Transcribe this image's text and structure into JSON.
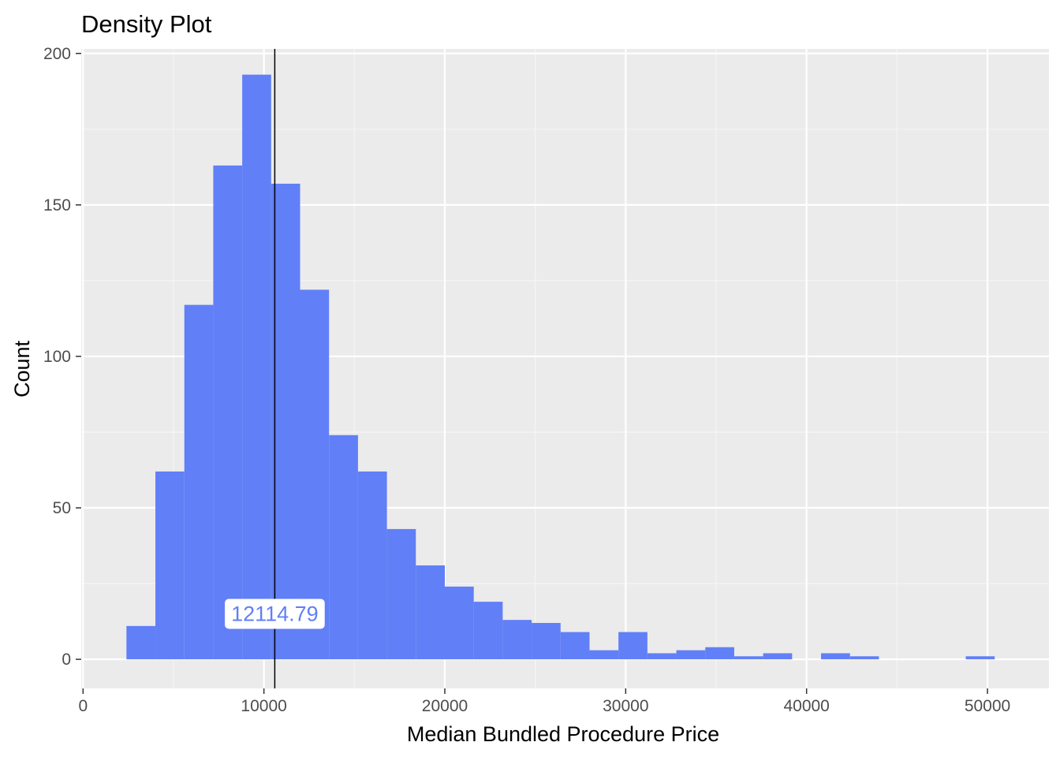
{
  "chart_data": {
    "type": "bar",
    "title": "Density Plot",
    "xlabel": "Median Bundled Procedure Price",
    "ylabel": "Count",
    "xlim": [
      -100,
      53400
    ],
    "ylim": [
      -9.6,
      201.5
    ],
    "x_ticks": [
      0,
      10000,
      20000,
      30000,
      40000,
      50000
    ],
    "x_tick_labels": [
      "0",
      "10000",
      "20000",
      "30000",
      "40000",
      "50000"
    ],
    "y_ticks": [
      0,
      50,
      100,
      150,
      200
    ],
    "y_tick_labels": [
      "0",
      "50",
      "100",
      "150",
      "200"
    ],
    "grid": true,
    "bin_width": 1600,
    "bins": [
      {
        "x0": 2400,
        "x1": 4000,
        "count": 11
      },
      {
        "x0": 4000,
        "x1": 5600,
        "count": 62
      },
      {
        "x0": 5600,
        "x1": 7200,
        "count": 117
      },
      {
        "x0": 7200,
        "x1": 8800,
        "count": 163
      },
      {
        "x0": 8800,
        "x1": 10400,
        "count": 193
      },
      {
        "x0": 10400,
        "x1": 12000,
        "count": 157
      },
      {
        "x0": 12000,
        "x1": 13600,
        "count": 122
      },
      {
        "x0": 13600,
        "x1": 15200,
        "count": 74
      },
      {
        "x0": 15200,
        "x1": 16800,
        "count": 62
      },
      {
        "x0": 16800,
        "x1": 18400,
        "count": 43
      },
      {
        "x0": 18400,
        "x1": 20000,
        "count": 31
      },
      {
        "x0": 20000,
        "x1": 21600,
        "count": 24
      },
      {
        "x0": 21600,
        "x1": 23200,
        "count": 19
      },
      {
        "x0": 23200,
        "x1": 24800,
        "count": 13
      },
      {
        "x0": 24800,
        "x1": 26400,
        "count": 12
      },
      {
        "x0": 26400,
        "x1": 28000,
        "count": 9
      },
      {
        "x0": 28000,
        "x1": 29600,
        "count": 3
      },
      {
        "x0": 29600,
        "x1": 31200,
        "count": 9
      },
      {
        "x0": 31200,
        "x1": 32800,
        "count": 2
      },
      {
        "x0": 32800,
        "x1": 34400,
        "count": 3
      },
      {
        "x0": 34400,
        "x1": 36000,
        "count": 4
      },
      {
        "x0": 36000,
        "x1": 37600,
        "count": 1
      },
      {
        "x0": 37600,
        "x1": 39200,
        "count": 2
      },
      {
        "x0": 39200,
        "x1": 40800,
        "count": 0
      },
      {
        "x0": 40800,
        "x1": 42400,
        "count": 2
      },
      {
        "x0": 42400,
        "x1": 44000,
        "count": 1
      },
      {
        "x0": 44000,
        "x1": 45600,
        "count": 0
      },
      {
        "x0": 45600,
        "x1": 47200,
        "count": 0
      },
      {
        "x0": 47200,
        "x1": 48800,
        "count": 0
      },
      {
        "x0": 48800,
        "x1": 50400,
        "count": 1
      }
    ],
    "vline": {
      "x": 10600,
      "color": "#000000"
    },
    "annotation": {
      "text": "12114.79",
      "x": 10600,
      "y": 15
    },
    "colors": {
      "bar": "#617ff7",
      "panel": "#ebebeb",
      "grid_major": "#ffffff",
      "grid_minor": "#f5f5f5",
      "annotation_text": "#617ff7"
    }
  }
}
